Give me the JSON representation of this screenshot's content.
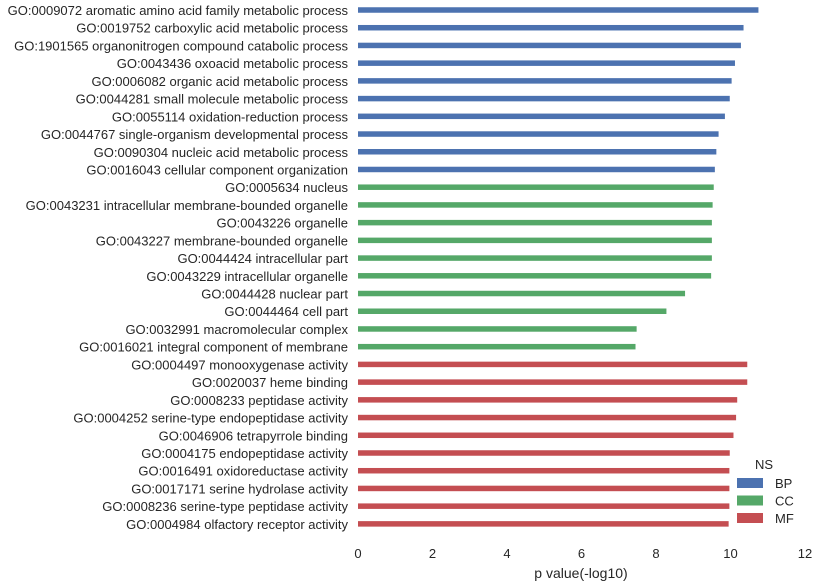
{
  "chart_data": {
    "type": "bar",
    "orientation": "horizontal",
    "xlabel": "p value(-log10)",
    "xlim": [
      0,
      12
    ],
    "xticks": [
      0,
      2,
      4,
      6,
      8,
      10,
      12
    ],
    "grid": false,
    "legend": {
      "title": "NS",
      "placement": "bottom-right",
      "entries": [
        {
          "name": "BP",
          "color": "#4c72b0"
        },
        {
          "name": "CC",
          "color": "#55a868"
        },
        {
          "name": "MF",
          "color": "#c44e52"
        }
      ]
    },
    "bars": [
      {
        "category": "GO:0009072 aromatic amino acid family metabolic process",
        "value": 10.75,
        "group": "BP"
      },
      {
        "category": "GO:0019752 carboxylic acid metabolic process",
        "value": 10.35,
        "group": "BP"
      },
      {
        "category": "GO:1901565 organonitrogen compound catabolic process",
        "value": 10.28,
        "group": "BP"
      },
      {
        "category": "GO:0043436 oxoacid metabolic process",
        "value": 10.12,
        "group": "BP"
      },
      {
        "category": "GO:0006082 organic acid metabolic process",
        "value": 10.03,
        "group": "BP"
      },
      {
        "category": "GO:0044281 small molecule metabolic process",
        "value": 9.98,
        "group": "BP"
      },
      {
        "category": "GO:0055114 oxidation-reduction process",
        "value": 9.85,
        "group": "BP"
      },
      {
        "category": "GO:0044767 single-organism developmental process",
        "value": 9.68,
        "group": "BP"
      },
      {
        "category": "GO:0090304 nucleic acid metabolic process",
        "value": 9.62,
        "group": "BP"
      },
      {
        "category": "GO:0016043 cellular component organization",
        "value": 9.58,
        "group": "BP"
      },
      {
        "category": "GO:0005634 nucleus",
        "value": 9.55,
        "group": "CC"
      },
      {
        "category": "GO:0043231 intracellular membrane-bounded organelle",
        "value": 9.52,
        "group": "CC"
      },
      {
        "category": "GO:0043226 organelle",
        "value": 9.5,
        "group": "CC"
      },
      {
        "category": "GO:0043227 membrane-bounded organelle",
        "value": 9.5,
        "group": "CC"
      },
      {
        "category": "GO:0044424 intracellular part",
        "value": 9.5,
        "group": "CC"
      },
      {
        "category": "GO:0043229 intracellular organelle",
        "value": 9.48,
        "group": "CC"
      },
      {
        "category": "GO:0044428 nuclear part",
        "value": 8.78,
        "group": "CC"
      },
      {
        "category": "GO:0044464 cell part",
        "value": 8.28,
        "group": "CC"
      },
      {
        "category": "GO:0032991 macromolecular complex",
        "value": 7.48,
        "group": "CC"
      },
      {
        "category": "GO:0016021 integral component of membrane",
        "value": 7.45,
        "group": "CC"
      },
      {
        "category": "GO:0004497 monooxygenase activity",
        "value": 10.45,
        "group": "MF"
      },
      {
        "category": "GO:0020037 heme binding",
        "value": 10.45,
        "group": "MF"
      },
      {
        "category": "GO:0008233 peptidase activity",
        "value": 10.18,
        "group": "MF"
      },
      {
        "category": "GO:0004252 serine-type endopeptidase activity",
        "value": 10.15,
        "group": "MF"
      },
      {
        "category": "GO:0046906 tetrapyrrole binding",
        "value": 10.08,
        "group": "MF"
      },
      {
        "category": "GO:0004175 endopeptidase activity",
        "value": 9.98,
        "group": "MF"
      },
      {
        "category": "GO:0016491 oxidoreductase activity",
        "value": 9.97,
        "group": "MF"
      },
      {
        "category": "GO:0017171 serine hydrolase activity",
        "value": 9.97,
        "group": "MF"
      },
      {
        "category": "GO:0008236 serine-type peptidase activity",
        "value": 9.97,
        "group": "MF"
      },
      {
        "category": "GO:0004984 olfactory receptor activity",
        "value": 9.95,
        "group": "MF"
      }
    ]
  }
}
